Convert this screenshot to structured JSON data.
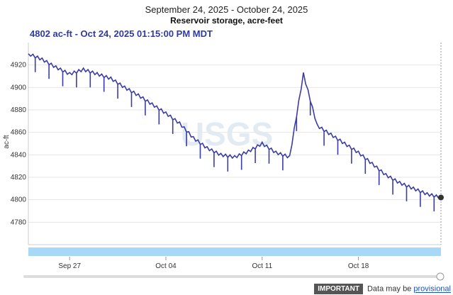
{
  "header": {
    "date_range": "September 24, 2025 - October 24, 2025",
    "title": "Reservoir storage, acre-feet",
    "current_reading": "4802 ac-ft - Oct 24, 2025 01:15:00 PM MDT"
  },
  "footer": {
    "important_label": "IMPORTANT",
    "note": "Data may be",
    "link": "provisional"
  },
  "watermark": "USGS",
  "colors": {
    "series": "#3b3ca6",
    "navigator": "#a8d8f8",
    "grid": "#e6e6e6"
  },
  "chart_data": {
    "type": "line",
    "title": "Reservoir storage, acre-feet",
    "ylabel": "ac-ft",
    "xlabel": "",
    "ylim": [
      4760,
      4940
    ],
    "yticks": [
      4780,
      4800,
      4820,
      4840,
      4860,
      4880,
      4900,
      4920
    ],
    "x_range": [
      "2025-09-24",
      "2025-10-24"
    ],
    "xticks": [
      {
        "date": "2025-09-27",
        "label": "Sep 27"
      },
      {
        "date": "2025-10-04",
        "label": "Oct 04"
      },
      {
        "date": "2025-10-11",
        "label": "Oct 11"
      },
      {
        "date": "2025-10-18",
        "label": "Oct 18"
      }
    ],
    "grid": true,
    "last_point": {
      "date": "2025-10-24",
      "value": 4802
    },
    "series": [
      {
        "values": [
          [
            "2025-09-24",
            4930
          ],
          [
            "2025-09-25",
            4925
          ],
          [
            "2025-09-26",
            4918
          ],
          [
            "2025-09-27",
            4912
          ],
          [
            "2025-09-28",
            4916
          ],
          [
            "2025-09-29",
            4912
          ],
          [
            "2025-09-30",
            4908
          ],
          [
            "2025-10-01",
            4900
          ],
          [
            "2025-10-02",
            4893
          ],
          [
            "2025-10-03",
            4885
          ],
          [
            "2025-10-04",
            4877
          ],
          [
            "2025-10-05",
            4868
          ],
          [
            "2025-10-06",
            4855
          ],
          [
            "2025-10-07",
            4846
          ],
          [
            "2025-10-08",
            4840
          ],
          [
            "2025-10-09",
            4838
          ],
          [
            "2025-10-10",
            4843
          ],
          [
            "2025-10-11",
            4850
          ],
          [
            "2025-10-12",
            4842
          ],
          [
            "2025-10-13",
            4838
          ],
          [
            "2025-10-14",
            4912
          ],
          [
            "2025-10-15",
            4866
          ],
          [
            "2025-10-16",
            4858
          ],
          [
            "2025-10-17",
            4850
          ],
          [
            "2025-10-18",
            4842
          ],
          [
            "2025-10-19",
            4832
          ],
          [
            "2025-10-20",
            4822
          ],
          [
            "2025-10-21",
            4815
          ],
          [
            "2025-10-22",
            4810
          ],
          [
            "2025-10-23",
            4805
          ],
          [
            "2025-10-24",
            4802
          ]
        ]
      }
    ]
  }
}
